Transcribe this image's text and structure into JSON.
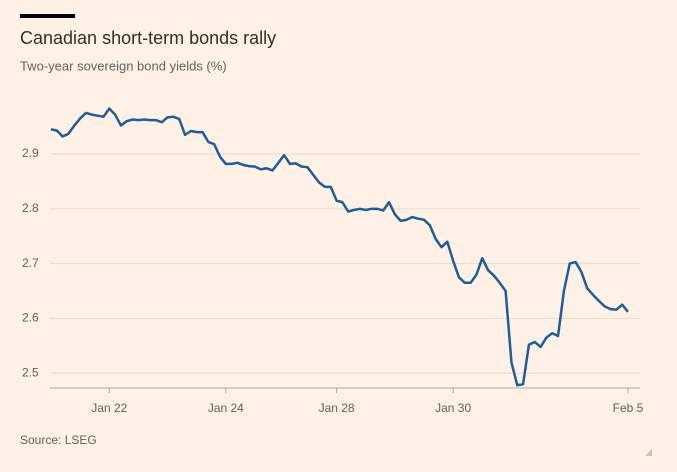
{
  "chart_data": {
    "type": "line",
    "title": "Canadian short-term bonds rally",
    "subtitle": "Two-year sovereign bond yields (%)",
    "source": "Source: LSEG",
    "color": "#1f5c99",
    "categories": [
      null,
      null,
      null,
      null,
      null,
      null,
      null,
      null,
      null,
      null,
      "Jan 22",
      null,
      null,
      null,
      null,
      null,
      null,
      null,
      null,
      null,
      null,
      null,
      null,
      null,
      null,
      null,
      null,
      null,
      null,
      null,
      "Jan 24",
      null,
      null,
      null,
      null,
      null,
      null,
      null,
      null,
      null,
      null,
      null,
      null,
      null,
      null,
      null,
      null,
      null,
      null,
      "Jan 28",
      null,
      null,
      null,
      null,
      null,
      null,
      null,
      null,
      null,
      null,
      null,
      null,
      null,
      null,
      null,
      null,
      null,
      null,
      null,
      "Jan 30",
      null,
      null,
      null,
      null,
      null,
      null,
      null,
      null,
      null,
      null,
      null,
      null,
      null,
      null,
      null,
      null,
      null,
      null,
      null,
      null,
      null,
      null,
      null,
      null,
      null,
      null,
      null,
      null,
      null,
      "Feb 5"
    ],
    "values": [
      2.945,
      2.943,
      2.932,
      2.937,
      2.952,
      2.965,
      2.975,
      2.972,
      2.97,
      2.968,
      2.983,
      2.972,
      2.952,
      2.96,
      2.963,
      2.962,
      2.963,
      2.962,
      2.962,
      2.958,
      2.967,
      2.968,
      2.964,
      2.935,
      2.942,
      2.94,
      2.94,
      2.922,
      2.918,
      2.895,
      2.882,
      2.882,
      2.884,
      2.88,
      2.878,
      2.877,
      2.872,
      2.874,
      2.87,
      2.884,
      2.898,
      2.882,
      2.883,
      2.877,
      2.876,
      2.862,
      2.848,
      2.84,
      2.84,
      2.815,
      2.812,
      2.795,
      2.798,
      2.8,
      2.798,
      2.8,
      2.8,
      2.797,
      2.812,
      2.79,
      2.778,
      2.78,
      2.785,
      2.782,
      2.78,
      2.77,
      2.745,
      2.73,
      2.74,
      2.705,
      2.675,
      2.665,
      2.665,
      2.68,
      2.71,
      2.688,
      2.678,
      2.665,
      2.65,
      2.52,
      2.478,
      2.48,
      2.552,
      2.557,
      2.548,
      2.565,
      2.573,
      2.568,
      2.65,
      2.7,
      2.703,
      2.685,
      2.655,
      2.643,
      2.632,
      2.622,
      2.617,
      2.616,
      2.625,
      2.612
    ],
    "ylim": [
      2.473,
      3.0
    ],
    "yticks": [
      2.5,
      2.6,
      2.7,
      2.8,
      2.9
    ],
    "grid": true
  }
}
